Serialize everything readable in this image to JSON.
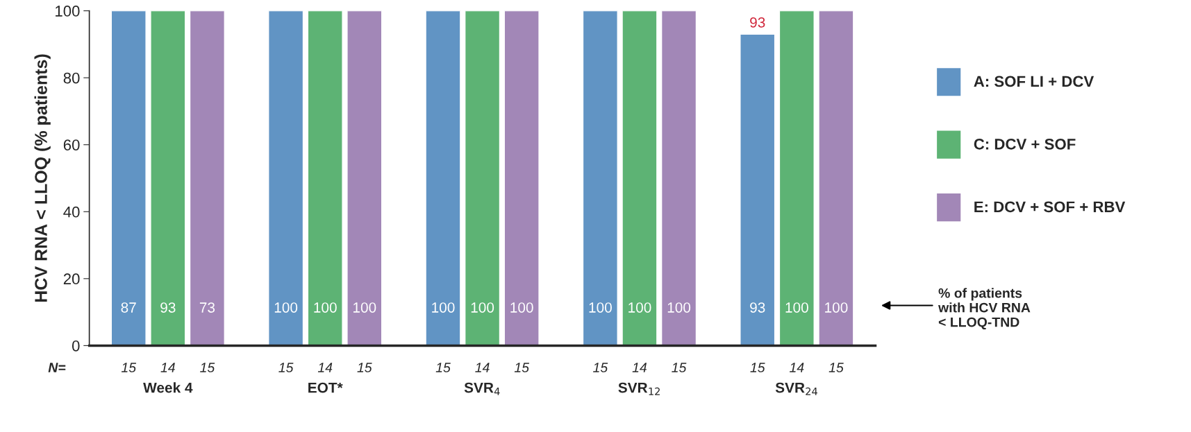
{
  "chart_data": {
    "type": "bar",
    "ylabel": "HCV RNA < LLOQ (% patients)",
    "categories": [
      "Week 4",
      "EOT*",
      "SVR$_{4}$",
      "SVR$_{12}$",
      "SVR$_{24}$"
    ],
    "series": [
      {
        "name": "A: SOF LI + DCV",
        "color": "#6194c4",
        "values": [
          100,
          100,
          100,
          100,
          93
        ],
        "value_labels": [
          null,
          null,
          null,
          null,
          "93"
        ]
      },
      {
        "name": "C: DCV + SOF",
        "color": "#5db374",
        "values": [
          100,
          100,
          100,
          100,
          100
        ]
      },
      {
        "name": "E: DCV + SOF + RBV",
        "color": "#a287b7",
        "values": [
          100,
          100,
          100,
          100,
          100
        ]
      }
    ],
    "ylim": [
      0,
      100
    ],
    "yticks": [
      0,
      20,
      40,
      60,
      80,
      100
    ],
    "legend": "right",
    "annotations": [
      "% of patients\nwith HCV RNA\n< LLOQ-TND",
      "N=",
      "87",
      "93",
      "73",
      "100",
      "100",
      "100",
      "100",
      "100",
      "100",
      "100",
      "100",
      "100",
      "93",
      "100",
      "100",
      "15",
      "14",
      "15",
      "15",
      "14",
      "15",
      "15",
      "14",
      "15",
      "15",
      "14",
      "15",
      "15",
      "14",
      "15"
    ]
  }
}
